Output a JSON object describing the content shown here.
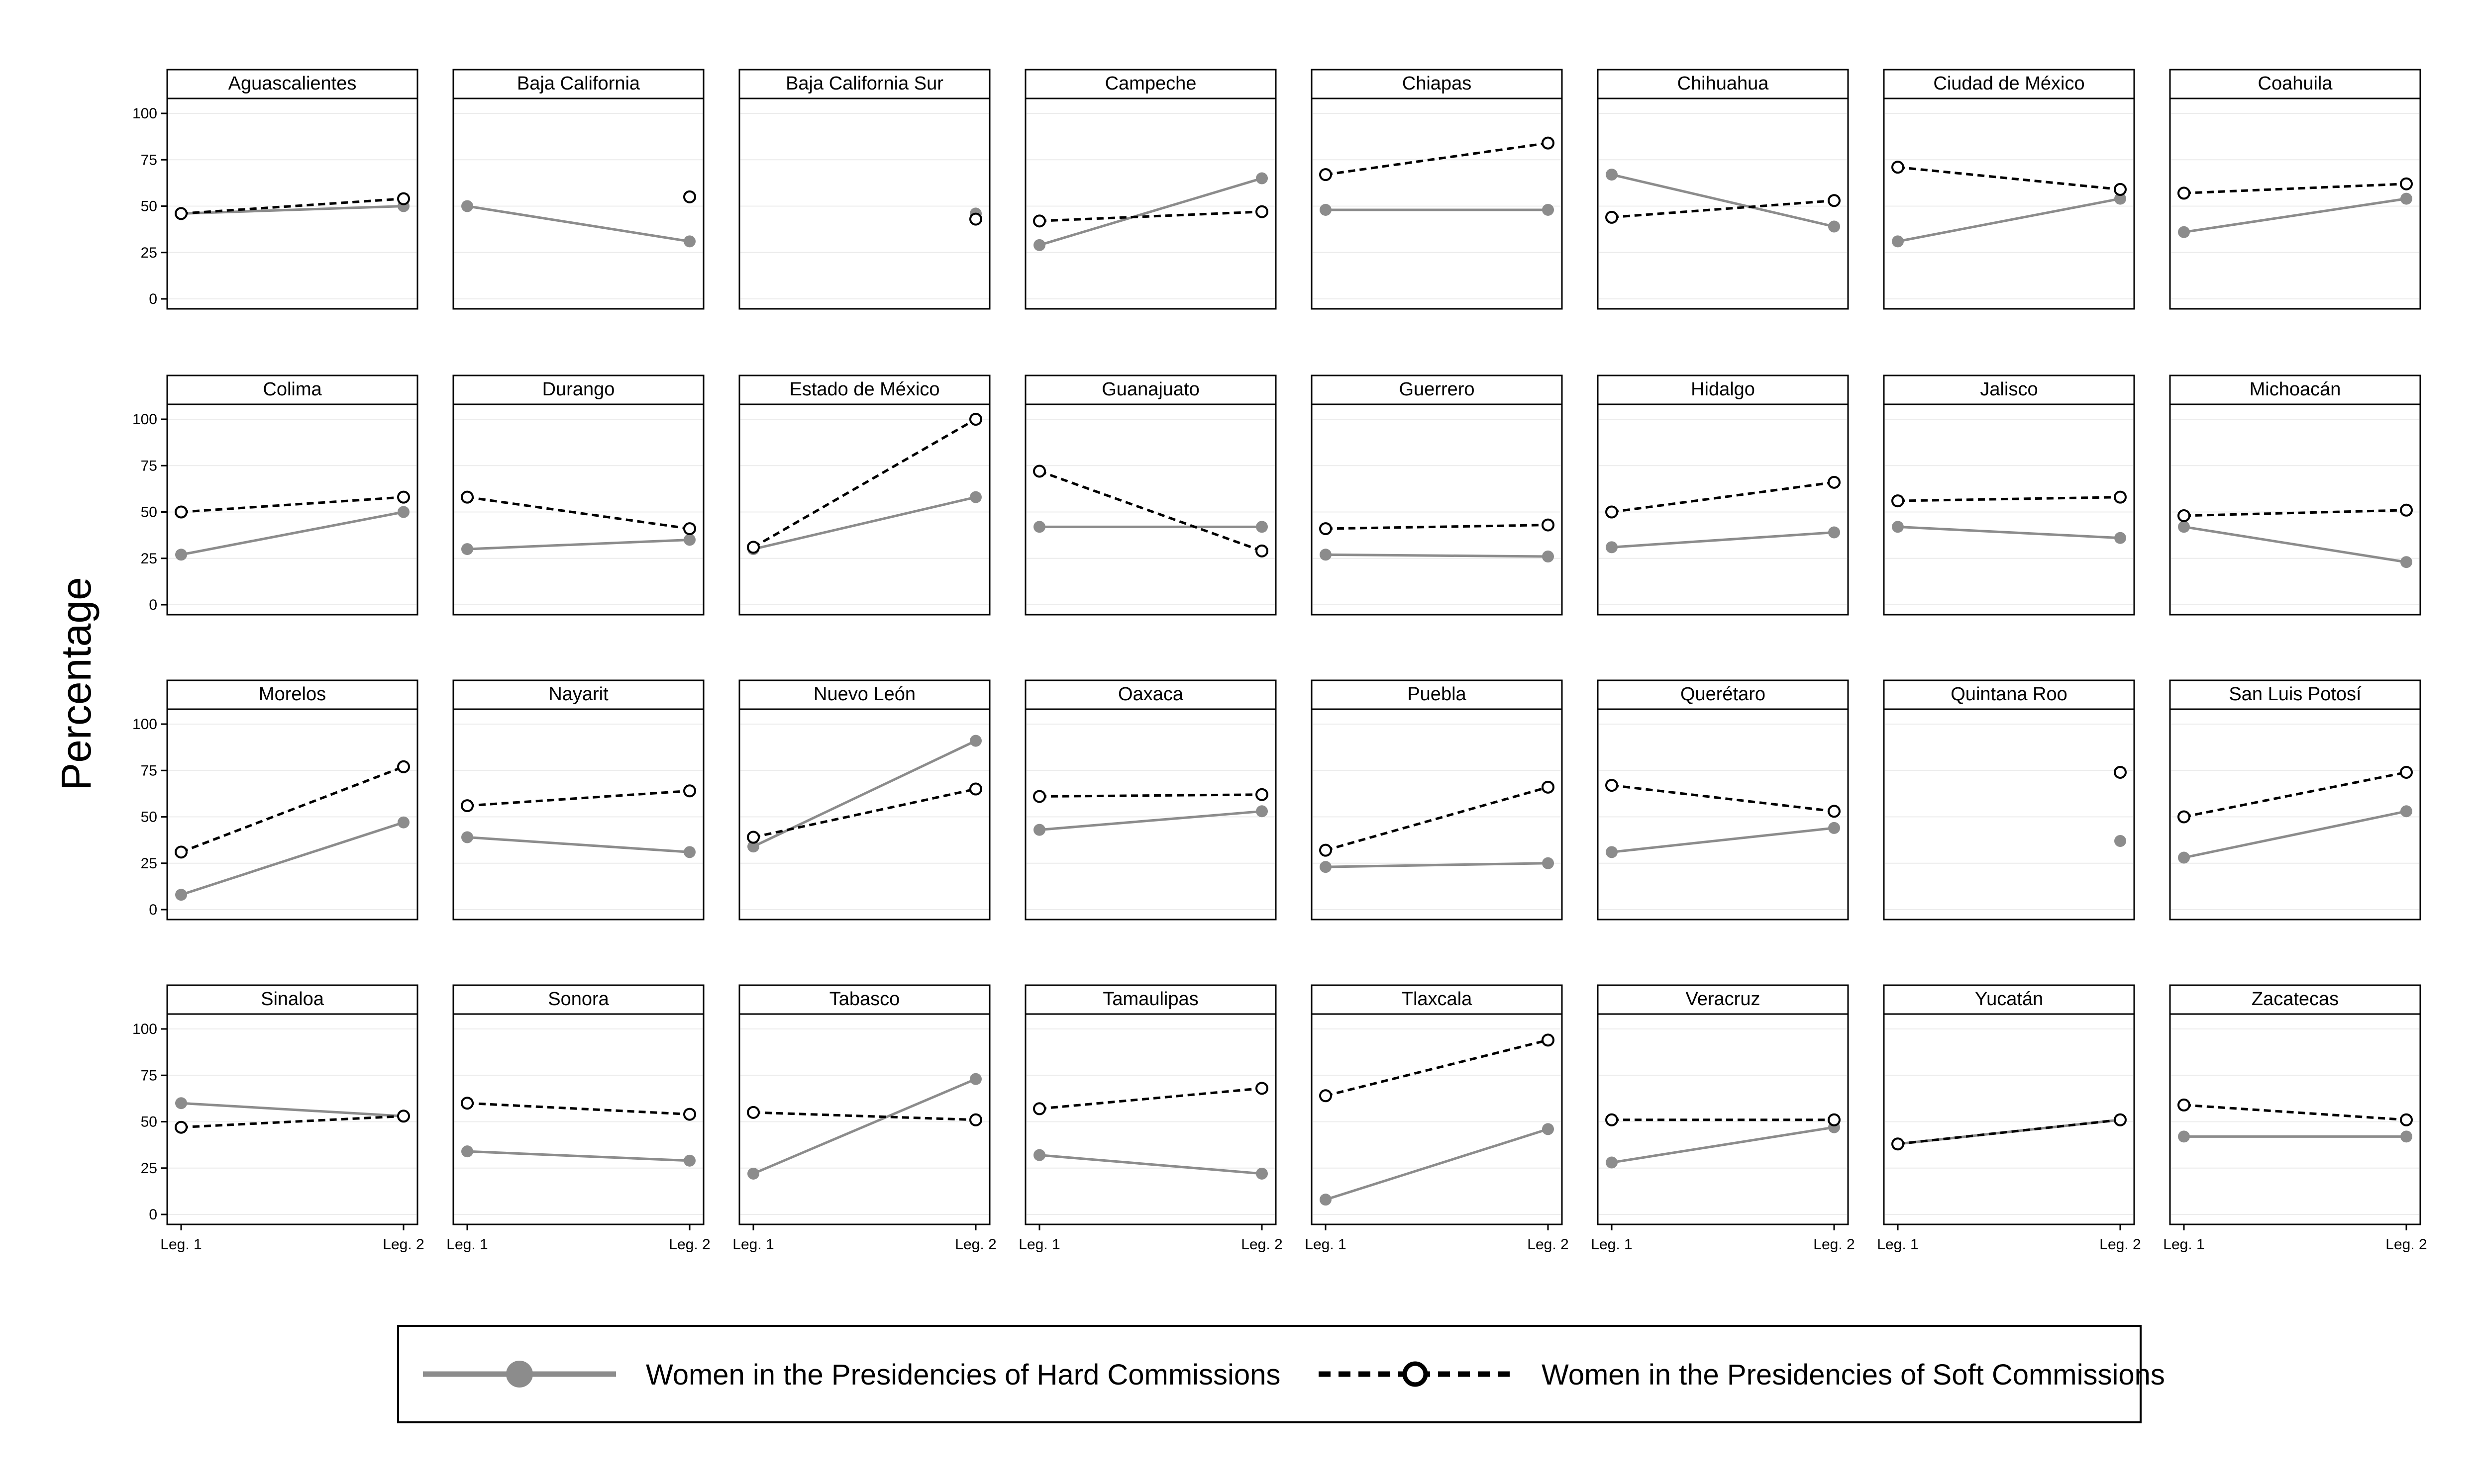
{
  "chart_data": {
    "type": "line",
    "ylabel": "Percentage",
    "xlabel": "",
    "x": [
      "Leg. 1",
      "Leg. 2"
    ],
    "ylim": [
      0,
      100
    ],
    "yticks": [
      0,
      25,
      50,
      75,
      100
    ],
    "grid": true,
    "layout": "4 rows x 8 columns of panels",
    "legend_position": "bottom",
    "colors": {
      "hard": "#8c8c8c",
      "soft": "#000000",
      "frame": "#000000",
      "strip": "#ffffff"
    },
    "series": [
      {
        "key": "hard",
        "name": "Women in the Presidencies of Hard Commissions",
        "style": "solid grey line, filled circle markers"
      },
      {
        "key": "soft",
        "name": "Women in the Presidencies of Soft Commissions",
        "style": "dashed black line, hollow circle markers"
      }
    ],
    "panels": [
      {
        "state": "Aguascalientes",
        "hard": [
          46,
          50
        ],
        "soft": [
          46,
          54
        ]
      },
      {
        "state": "Baja California",
        "hard": [
          50,
          31
        ],
        "soft": [
          null,
          55
        ]
      },
      {
        "state": "Baja California Sur",
        "hard": [
          null,
          46
        ],
        "soft": [
          null,
          43
        ]
      },
      {
        "state": "Campeche",
        "hard": [
          29,
          65
        ],
        "soft": [
          42,
          47
        ]
      },
      {
        "state": "Chiapas",
        "hard": [
          48,
          48
        ],
        "soft": [
          67,
          84
        ]
      },
      {
        "state": "Chihuahua",
        "hard": [
          67,
          39
        ],
        "soft": [
          44,
          53
        ]
      },
      {
        "state": "Ciudad de México",
        "hard": [
          31,
          54
        ],
        "soft": [
          71,
          59
        ]
      },
      {
        "state": "Coahuila",
        "hard": [
          36,
          54
        ],
        "soft": [
          57,
          62
        ]
      },
      {
        "state": "Colima",
        "hard": [
          27,
          50
        ],
        "soft": [
          50,
          58
        ]
      },
      {
        "state": "Durango",
        "hard": [
          30,
          35
        ],
        "soft": [
          58,
          41
        ]
      },
      {
        "state": "Estado de México",
        "hard": [
          30,
          58
        ],
        "soft": [
          31,
          100
        ]
      },
      {
        "state": "Guanajuato",
        "hard": [
          42,
          42
        ],
        "soft": [
          72,
          29
        ]
      },
      {
        "state": "Guerrero",
        "hard": [
          27,
          26
        ],
        "soft": [
          41,
          43
        ]
      },
      {
        "state": "Hidalgo",
        "hard": [
          31,
          39
        ],
        "soft": [
          50,
          66
        ]
      },
      {
        "state": "Jalisco",
        "hard": [
          42,
          36
        ],
        "soft": [
          56,
          58
        ]
      },
      {
        "state": "Michoacán",
        "hard": [
          42,
          23
        ],
        "soft": [
          48,
          51
        ]
      },
      {
        "state": "Morelos",
        "hard": [
          8,
          47
        ],
        "soft": [
          31,
          77
        ]
      },
      {
        "state": "Nayarit",
        "hard": [
          39,
          31
        ],
        "soft": [
          56,
          64
        ]
      },
      {
        "state": "Nuevo León",
        "hard": [
          34,
          91
        ],
        "soft": [
          39,
          65
        ]
      },
      {
        "state": "Oaxaca",
        "hard": [
          43,
          53
        ],
        "soft": [
          61,
          62
        ]
      },
      {
        "state": "Puebla",
        "hard": [
          23,
          25
        ],
        "soft": [
          32,
          66
        ]
      },
      {
        "state": "Querétaro",
        "hard": [
          31,
          44
        ],
        "soft": [
          67,
          53
        ]
      },
      {
        "state": "Quintana Roo",
        "hard": [
          null,
          37
        ],
        "soft": [
          null,
          74
        ]
      },
      {
        "state": "San Luis Potosí",
        "hard": [
          28,
          53
        ],
        "soft": [
          50,
          74
        ]
      },
      {
        "state": "Sinaloa",
        "hard": [
          60,
          53
        ],
        "soft": [
          47,
          53
        ]
      },
      {
        "state": "Sonora",
        "hard": [
          34,
          29
        ],
        "soft": [
          60,
          54
        ]
      },
      {
        "state": "Tabasco",
        "hard": [
          22,
          73
        ],
        "soft": [
          55,
          51
        ]
      },
      {
        "state": "Tamaulipas",
        "hard": [
          32,
          22
        ],
        "soft": [
          57,
          68
        ]
      },
      {
        "state": "Tlaxcala",
        "hard": [
          8,
          46
        ],
        "soft": [
          64,
          94
        ]
      },
      {
        "state": "Veracruz",
        "hard": [
          28,
          47
        ],
        "soft": [
          51,
          51
        ]
      },
      {
        "state": "Yucatán",
        "hard": [
          38,
          51
        ],
        "soft": [
          38,
          51
        ]
      },
      {
        "state": "Zacatecas",
        "hard": [
          42,
          42
        ],
        "soft": [
          59,
          51
        ]
      }
    ]
  }
}
